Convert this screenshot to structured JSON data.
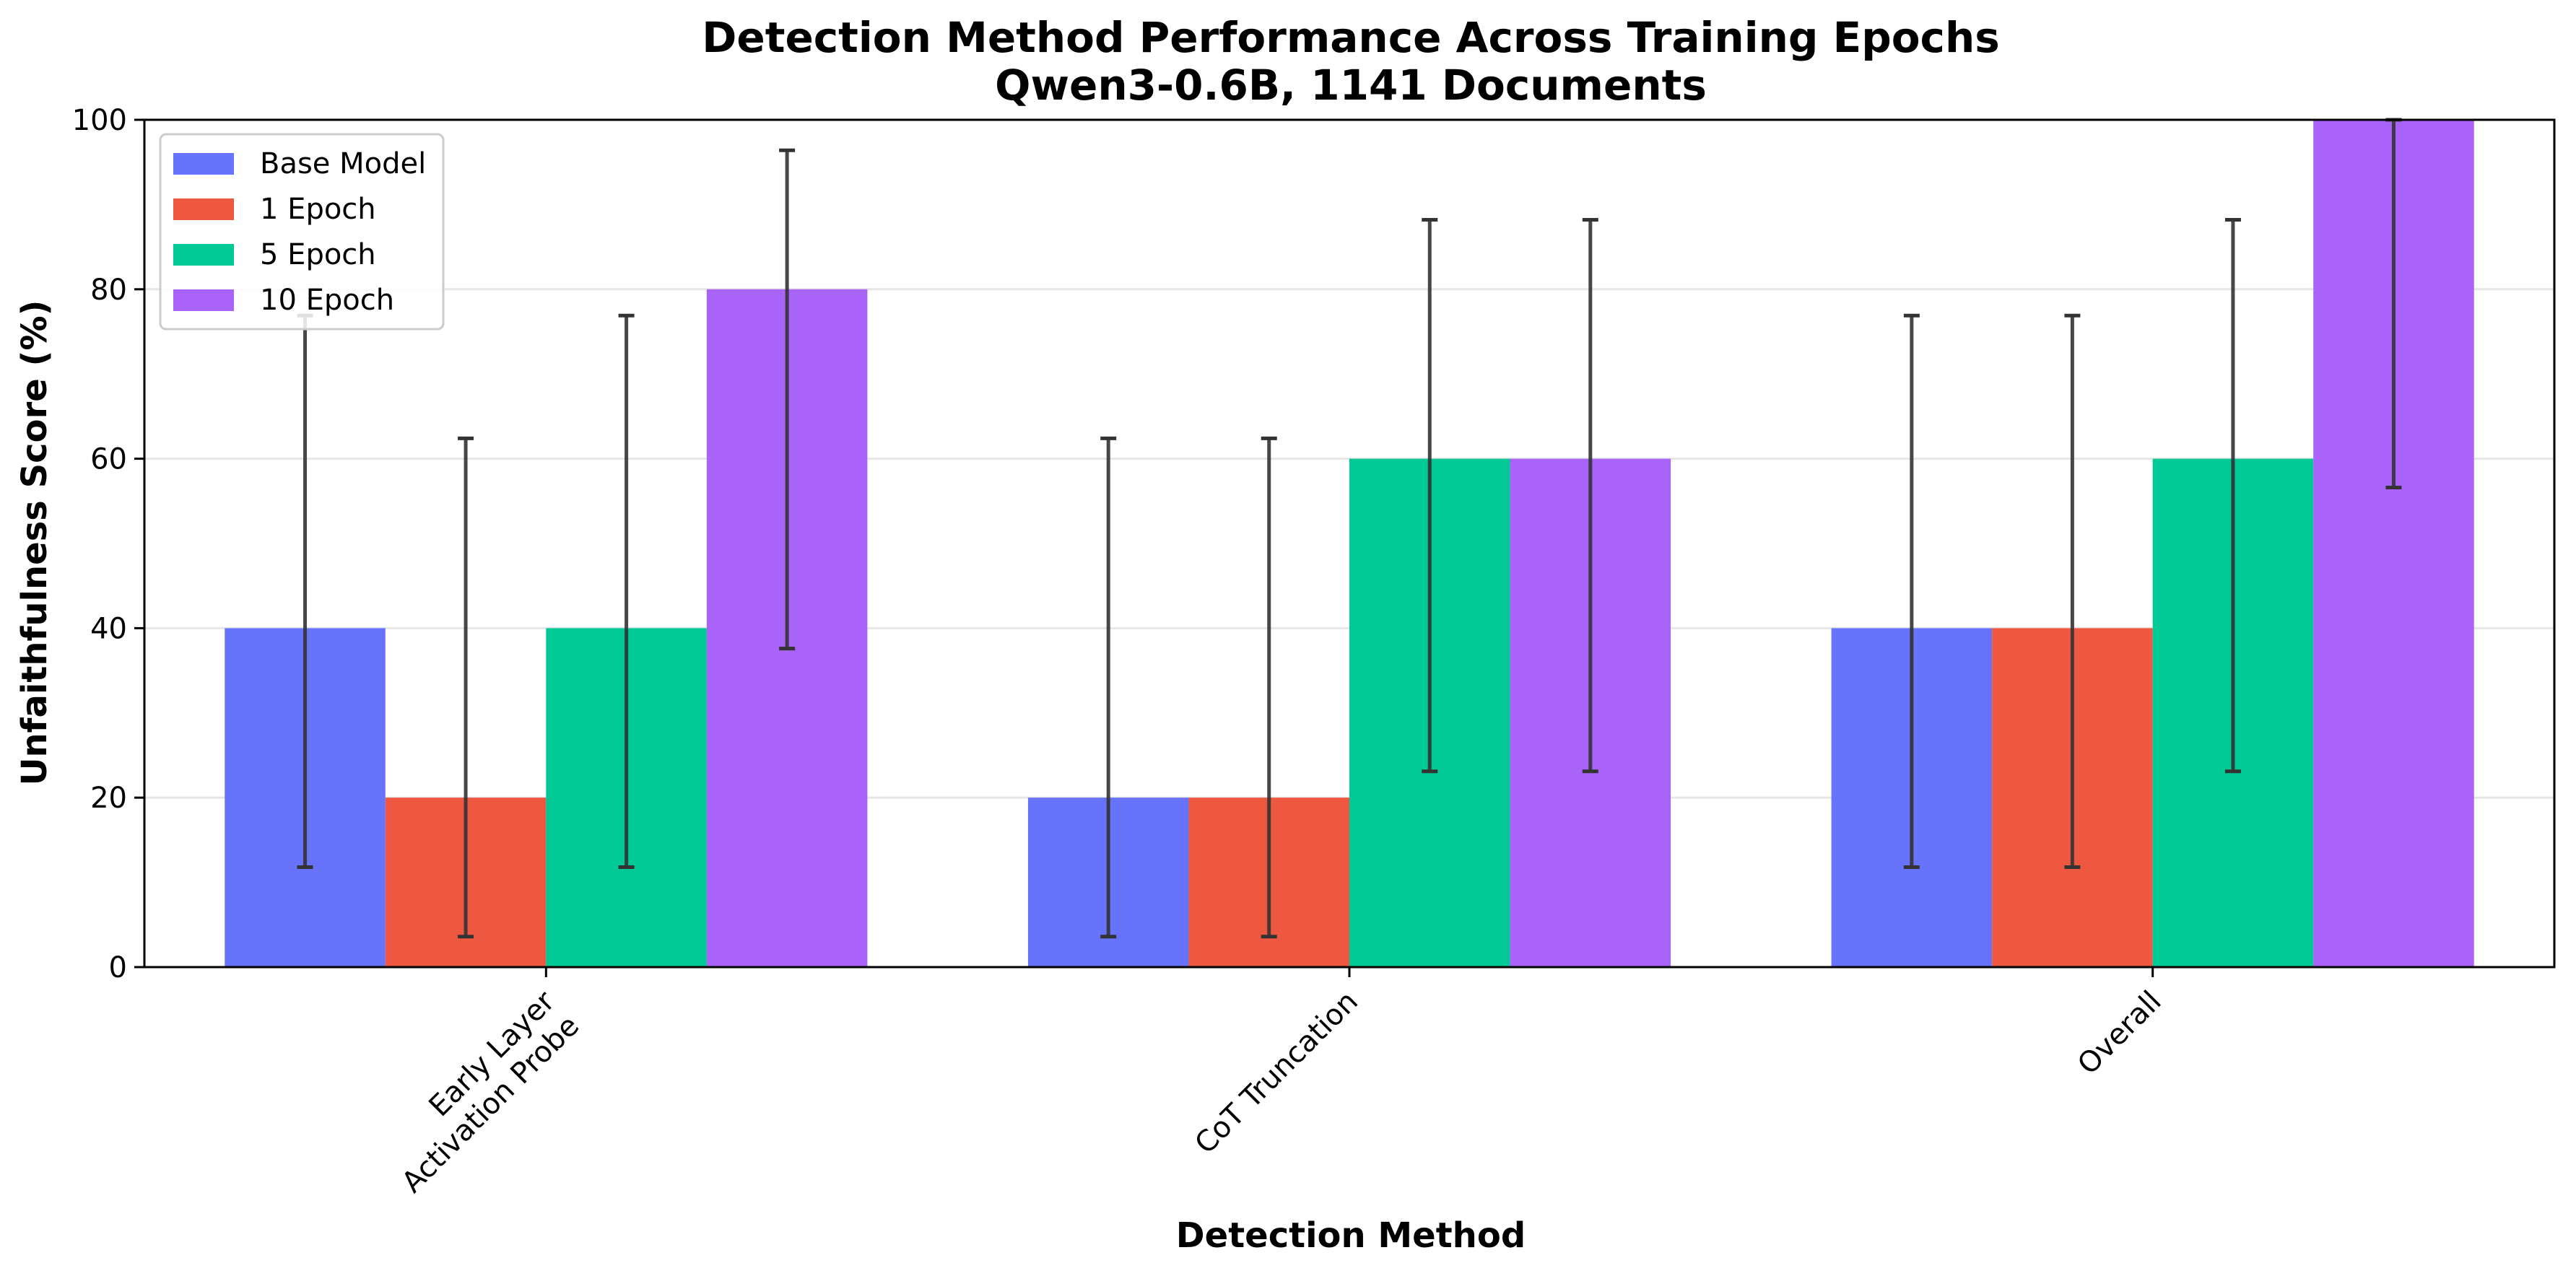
{
  "chart_data": {
    "type": "bar",
    "title": "Detection Method Performance Across Training Epochs",
    "subtitle": "Qwen3-0.6B, 1141 Documents",
    "xlabel": "Detection Method",
    "ylabel": "Unfaithfulness Score (%)",
    "ylim": [
      0,
      100
    ],
    "yticks": [
      0,
      20,
      40,
      60,
      80,
      100
    ],
    "grid": "horizontal",
    "legend_position": "top-left",
    "categories": [
      "Early Layer\nActivation Probe",
      "CoT Truncation",
      "Overall"
    ],
    "series": [
      {
        "name": "Base Model",
        "color": "#6673fa",
        "values": [
          40,
          20,
          40
        ],
        "error_low": [
          11.8,
          3.6,
          11.8
        ],
        "error_high": [
          76.9,
          62.4,
          76.9
        ]
      },
      {
        "name": "1 Epoch",
        "color": "#ee5840",
        "values": [
          20,
          20,
          40
        ],
        "error_low": [
          3.6,
          3.6,
          11.8
        ],
        "error_high": [
          62.4,
          62.4,
          76.9
        ]
      },
      {
        "name": "5 Epoch",
        "color": "#00c995",
        "values": [
          40,
          60,
          60
        ],
        "error_low": [
          11.8,
          23.1,
          23.1
        ],
        "error_high": [
          76.9,
          88.2,
          88.2
        ]
      },
      {
        "name": "10 Epoch",
        "color": "#a963f8",
        "values": [
          80,
          60,
          100
        ],
        "error_low": [
          37.6,
          23.1,
          56.6
        ],
        "error_high": [
          96.4,
          88.2,
          100
        ]
      }
    ]
  }
}
